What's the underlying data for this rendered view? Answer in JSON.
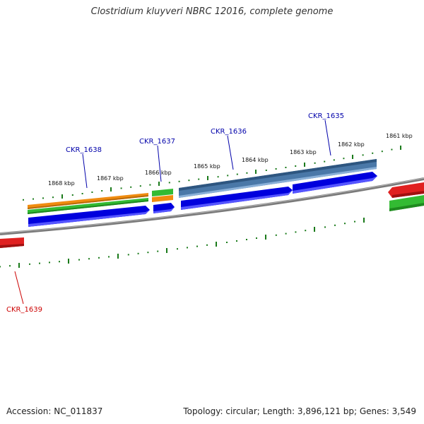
{
  "title": "Clostridium kluyveri NBRC 12016, complete genome",
  "footer": {
    "accession": "Accession: NC_011837",
    "stats": "Topology: circular; Length: 3,896,121 bp; Genes: 3,549"
  },
  "ticks": [
    "1868 kbp",
    "1867 kbp",
    "1866 kbp",
    "1865 kbp",
    "1864 kbp",
    "1863 kbp",
    "1862 kbp",
    "1861 kbp"
  ],
  "gene_labels": {
    "g1638": "CKR_1638",
    "g1637": "CKR_1637",
    "g1636": "CKR_1636",
    "g1635": "CKR_1635",
    "g1639": "CKR_1639"
  },
  "colors": {
    "forward_cds": "#0000dd",
    "backbone": "#7a7a7a",
    "tick": "#1a7a1a",
    "orange_feature": "#f08c10",
    "green_feature": "#33bb33",
    "steelblue_feature": "#4a78a8",
    "red_feature": "#e02020",
    "label_blue": "#0000aa",
    "label_red": "#cc0000"
  }
}
